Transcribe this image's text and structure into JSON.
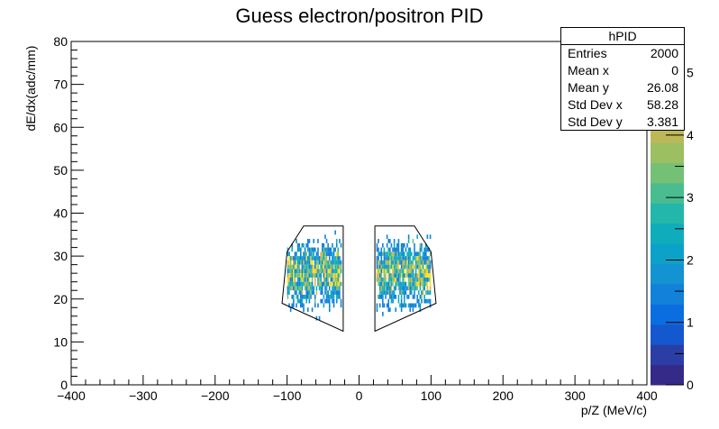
{
  "chart_data": {
    "type": "heatmap",
    "title": "Guess electron/positron PID",
    "xlabel": "p/Z (MeV/c)",
    "ylabel": "dE/dx(adc/mm)",
    "xlim": [
      -400,
      400
    ],
    "ylim": [
      0,
      80
    ],
    "x_ticks": [
      "−400",
      "−300",
      "−200",
      "−100",
      "0",
      "100",
      "200",
      "300",
      "400"
    ],
    "y_ticks": [
      "0",
      "10",
      "20",
      "30",
      "40",
      "50",
      "60",
      "70",
      "80"
    ],
    "z_ticks": [
      "0",
      "1",
      "2",
      "3",
      "4",
      "5"
    ],
    "zlim": [
      0,
      5.5
    ],
    "colors": {
      "palette": [
        "#352a87",
        "#2b3ea5",
        "#1458d0",
        "#0b6ee0",
        "#1181d9",
        "#1393d2",
        "#0ca1c8",
        "#0fadbb",
        "#23b6aa",
        "#49bd90",
        "#74c175",
        "#9cbf62",
        "#bdb857",
        "#d7b34a",
        "#eebb37",
        "#f9c92c",
        "#f9e21c"
      ]
    },
    "cut_polygons": [
      [
        [
          -77,
          37
        ],
        [
          -22,
          37
        ],
        [
          -22,
          12.5
        ],
        [
          -107,
          19
        ],
        [
          -100,
          31
        ]
      ],
      [
        [
          77,
          37
        ],
        [
          22,
          37
        ],
        [
          22,
          12.5
        ],
        [
          107,
          19
        ],
        [
          100,
          31
        ]
      ]
    ],
    "clusters": [
      {
        "x_range": [
          -100,
          -25
        ],
        "y_center": 26,
        "y_sigma": 3.4,
        "count": 1000
      },
      {
        "x_range": [
          25,
          100
        ],
        "y_center": 26,
        "y_sigma": 3.4,
        "count": 1000
      }
    ],
    "stats": {
      "name": "hPID",
      "rows": [
        {
          "label": "Entries",
          "value": "2000"
        },
        {
          "label": "Mean x",
          "value": "0"
        },
        {
          "label": "Mean y",
          "value": "26.08"
        },
        {
          "label": "Std Dev x",
          "value": "58.28"
        },
        {
          "label": "Std Dev y",
          "value": "3.381"
        }
      ]
    }
  }
}
